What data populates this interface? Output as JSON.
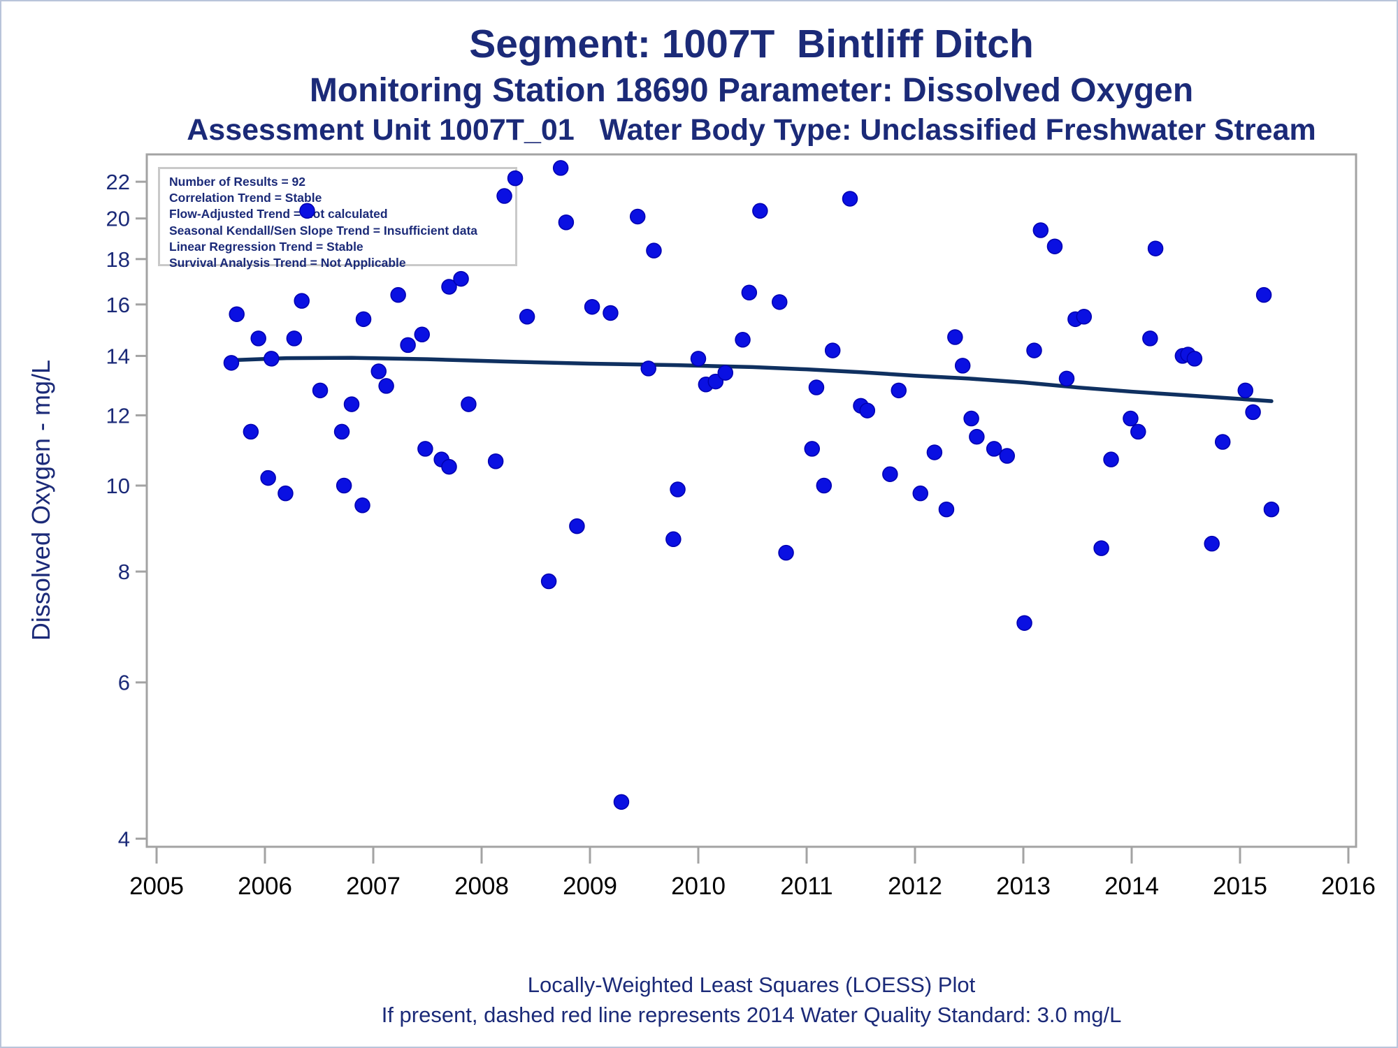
{
  "header": {
    "line1": "Segment: 1007T  Bintliff Ditch",
    "line2": "Monitoring Station 18690 Parameter: Dissolved Oxygen",
    "line3": "Assessment Unit 1007T_01   Water Body Type: Unclassified Freshwater Stream"
  },
  "stats_box": {
    "lines": [
      "Number of Results = 92",
      "Correlation Trend = Stable",
      "Flow-Adjusted Trend = Not calculated",
      "Seasonal Kendall/Sen Slope Trend = Insufficient data",
      "Linear Regression Trend = Stable",
      "Survival Analysis Trend = Not Applicable"
    ]
  },
  "footer": {
    "line1": "Locally-Weighted Least Squares (LOESS) Plot",
    "line2": "If present, dashed red line represents 2014 Water Quality Standard: 3.0 mg/L"
  },
  "colors": {
    "title_navy": "#1b2a78",
    "dot_blue": "#0a10e2",
    "dot_edge": "#0000b0",
    "loess_navy": "#0f3060",
    "frame_gray": "#a3a3a3",
    "x_tick_text": "#000000",
    "y_tick_text": "#1b2a78",
    "stats_border": "#c9c9c9",
    "page_border": "#b9c4da",
    "background": "#ffffff"
  },
  "chart_data": {
    "type": "scatter",
    "title": "Segment: 1007T  Bintliff Ditch",
    "subtitle": "Monitoring Station 18690 Parameter: Dissolved Oxygen",
    "xlabel": "",
    "ylabel": "Dissolved Oxygen - mg/L",
    "y_scale": "log",
    "grid": false,
    "legend_position": "none",
    "xlim": [
      2004.91,
      2016.07
    ],
    "ylim": [
      3.92,
      23.65
    ],
    "x_ticks": [
      2005,
      2006,
      2007,
      2008,
      2009,
      2010,
      2011,
      2012,
      2013,
      2014,
      2015,
      2016
    ],
    "y_ticks": [
      22,
      20,
      18,
      16,
      14,
      12,
      10,
      8,
      6,
      4
    ],
    "series": [
      {
        "name": "Dissolved Oxygen measurements (mg/L)",
        "type": "scatter",
        "points": [
          [
            2005.69,
            13.75
          ],
          [
            2005.74,
            15.6
          ],
          [
            2005.87,
            11.5
          ],
          [
            2005.94,
            14.65
          ],
          [
            2006.03,
            10.2
          ],
          [
            2006.06,
            13.9
          ],
          [
            2006.19,
            9.8
          ],
          [
            2006.27,
            14.65
          ],
          [
            2006.34,
            16.15
          ],
          [
            2006.39,
            20.4
          ],
          [
            2006.51,
            12.8
          ],
          [
            2006.71,
            11.5
          ],
          [
            2006.73,
            10.0
          ],
          [
            2006.8,
            12.35
          ],
          [
            2006.9,
            9.5
          ],
          [
            2006.91,
            15.4
          ],
          [
            2007.05,
            13.45
          ],
          [
            2007.12,
            12.95
          ],
          [
            2007.23,
            16.4
          ],
          [
            2007.32,
            14.4
          ],
          [
            2007.45,
            14.8
          ],
          [
            2007.48,
            11.0
          ],
          [
            2007.63,
            10.7
          ],
          [
            2007.7,
            10.5
          ],
          [
            2007.7,
            16.75
          ],
          [
            2007.81,
            17.1
          ],
          [
            2007.88,
            12.35
          ],
          [
            2008.13,
            10.65
          ],
          [
            2008.21,
            21.2
          ],
          [
            2008.31,
            22.2
          ],
          [
            2008.42,
            15.5
          ],
          [
            2008.62,
            7.8
          ],
          [
            2008.73,
            22.8
          ],
          [
            2008.78,
            19.8
          ],
          [
            2008.88,
            9.0
          ],
          [
            2009.02,
            15.9
          ],
          [
            2009.19,
            15.65
          ],
          [
            2009.29,
            4.4
          ],
          [
            2009.44,
            20.1
          ],
          [
            2009.54,
            13.55
          ],
          [
            2009.59,
            18.4
          ],
          [
            2009.77,
            8.7
          ],
          [
            2009.81,
            9.9
          ],
          [
            2010.0,
            13.9
          ],
          [
            2010.07,
            13.0
          ],
          [
            2010.16,
            13.1
          ],
          [
            2010.25,
            13.4
          ],
          [
            2010.41,
            14.6
          ],
          [
            2010.47,
            16.5
          ],
          [
            2010.57,
            20.4
          ],
          [
            2010.75,
            16.1
          ],
          [
            2010.81,
            8.4
          ],
          [
            2011.05,
            11.0
          ],
          [
            2011.09,
            12.9
          ],
          [
            2011.16,
            10.0
          ],
          [
            2011.24,
            14.2
          ],
          [
            2011.4,
            21.05
          ],
          [
            2011.5,
            12.3
          ],
          [
            2011.56,
            12.15
          ],
          [
            2011.77,
            10.3
          ],
          [
            2011.85,
            12.8
          ],
          [
            2012.05,
            9.8
          ],
          [
            2012.18,
            10.9
          ],
          [
            2012.29,
            9.4
          ],
          [
            2012.37,
            14.7
          ],
          [
            2012.44,
            13.65
          ],
          [
            2012.52,
            11.9
          ],
          [
            2012.57,
            11.35
          ],
          [
            2012.73,
            11.0
          ],
          [
            2012.85,
            10.8
          ],
          [
            2013.01,
            7.0
          ],
          [
            2013.1,
            14.2
          ],
          [
            2013.16,
            19.4
          ],
          [
            2013.29,
            18.6
          ],
          [
            2013.4,
            13.2
          ],
          [
            2013.48,
            15.4
          ],
          [
            2013.56,
            15.5
          ],
          [
            2013.72,
            8.5
          ],
          [
            2013.81,
            10.7
          ],
          [
            2013.99,
            11.9
          ],
          [
            2014.06,
            11.5
          ],
          [
            2014.17,
            14.65
          ],
          [
            2014.22,
            18.5
          ],
          [
            2014.47,
            14.0
          ],
          [
            2014.52,
            14.05
          ],
          [
            2014.58,
            13.9
          ],
          [
            2014.74,
            8.6
          ],
          [
            2014.84,
            11.2
          ],
          [
            2015.05,
            12.8
          ],
          [
            2015.12,
            12.1
          ],
          [
            2015.22,
            16.4
          ],
          [
            2015.29,
            9.4
          ]
        ]
      },
      {
        "name": "LOESS trend line",
        "type": "line",
        "points": [
          [
            2005.72,
            13.85
          ],
          [
            2006.2,
            13.92
          ],
          [
            2006.8,
            13.93
          ],
          [
            2007.5,
            13.88
          ],
          [
            2008.2,
            13.8
          ],
          [
            2009.0,
            13.72
          ],
          [
            2009.8,
            13.67
          ],
          [
            2010.5,
            13.6
          ],
          [
            2011.0,
            13.52
          ],
          [
            2011.5,
            13.42
          ],
          [
            2012.0,
            13.3
          ],
          [
            2012.5,
            13.2
          ],
          [
            2013.0,
            13.07
          ],
          [
            2013.5,
            12.9
          ],
          [
            2014.0,
            12.76
          ],
          [
            2014.5,
            12.64
          ],
          [
            2015.0,
            12.52
          ],
          [
            2015.29,
            12.45
          ]
        ]
      }
    ]
  }
}
